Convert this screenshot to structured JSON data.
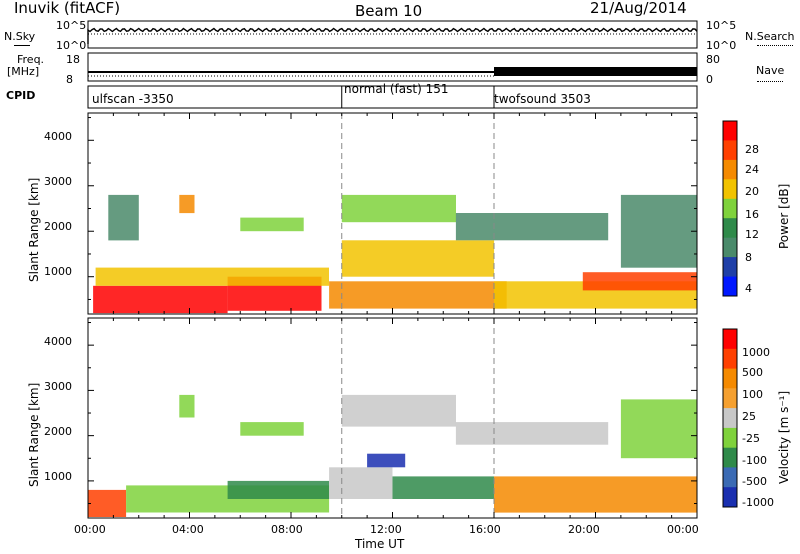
{
  "header": {
    "station": "Inuvik (fitACF)",
    "beam": "Beam 10",
    "date": "21/Aug/2014"
  },
  "top_panels": {
    "nsky_label": "N.Sky",
    "nsky_ticks": [
      "10^5",
      "10^0"
    ],
    "nsearch_label": "N.Search",
    "nsearch_ticks": [
      "10^5",
      "10^0"
    ],
    "freq_label": "Freq.",
    "freq_unit": "[MHz]",
    "freq_ticks": [
      "18",
      "8"
    ],
    "nave_label": "Nave",
    "nave_ticks": [
      "80",
      "0"
    ],
    "cpid_label": "CPID",
    "cpid_segments": [
      "ulfscan -3350",
      "normal (fast) 151",
      "twofsound 3503"
    ]
  },
  "chart_data": [
    {
      "type": "heatmap",
      "title": "",
      "xlabel": "",
      "ylabel": "Slant Range [km]",
      "x_ticks": [
        "00:00",
        "04:00",
        "08:00",
        "12:00",
        "16:00",
        "20:00",
        "00:00"
      ],
      "y_ticks": [
        "1000",
        "2000",
        "3000",
        "4000"
      ],
      "ylim": [
        180,
        4600
      ],
      "colorbar": {
        "label": "Power [dB]",
        "ticks": [
          "4",
          "8",
          "12",
          "16",
          "20",
          "24",
          "28"
        ],
        "colors": [
          "#0018ff",
          "#1f3fa8",
          "#4a8a6a",
          "#2f8a4a",
          "#7fd23c",
          "#f2c300",
          "#f58a00",
          "#ff4000",
          "#ff0000"
        ]
      },
      "regions": [
        {
          "t0": 0.2,
          "t1": 5.5,
          "r0": 200,
          "r1": 800,
          "level": 8
        },
        {
          "t0": 5.5,
          "t1": 9.2,
          "r0": 250,
          "r1": 1000,
          "level": 8
        },
        {
          "t0": 0.3,
          "t1": 9.5,
          "r0": 800,
          "r1": 1200,
          "level": 5
        },
        {
          "t0": 9.5,
          "t1": 16.5,
          "r0": 300,
          "r1": 900,
          "level": 6
        },
        {
          "t0": 10.0,
          "t1": 16.0,
          "r0": 1000,
          "r1": 1800,
          "level": 5
        },
        {
          "t0": 10.0,
          "t1": 14.5,
          "r0": 2200,
          "r1": 2800,
          "level": 4
        },
        {
          "t0": 14.5,
          "t1": 20.5,
          "r0": 1800,
          "r1": 2400,
          "level": 2
        },
        {
          "t0": 16.0,
          "t1": 24.0,
          "r0": 300,
          "r1": 900,
          "level": 5
        },
        {
          "t0": 19.5,
          "t1": 24.0,
          "r0": 700,
          "r1": 1100,
          "level": 7
        },
        {
          "t0": 0.8,
          "t1": 2.0,
          "r0": 1800,
          "r1": 2800,
          "level": 2
        },
        {
          "t0": 3.6,
          "t1": 4.2,
          "r0": 2400,
          "r1": 2800,
          "level": 6
        },
        {
          "t0": 6.0,
          "t1": 8.5,
          "r0": 2000,
          "r1": 2300,
          "level": 4
        },
        {
          "t0": 21.0,
          "t1": 24.0,
          "r0": 1200,
          "r1": 2800,
          "level": 2
        }
      ]
    },
    {
      "type": "heatmap",
      "title": "",
      "xlabel": "Time UT",
      "ylabel": "Slant Range [km]",
      "x_ticks": [
        "00:00",
        "04:00",
        "08:00",
        "12:00",
        "16:00",
        "20:00",
        "00:00"
      ],
      "y_ticks": [
        "1000",
        "2000",
        "3000",
        "4000"
      ],
      "ylim": [
        180,
        4600
      ],
      "colorbar": {
        "label": "Velocity [m s⁻¹]",
        "ticks": [
          "1000",
          "500",
          "100",
          "25",
          "-25",
          "-100",
          "-500",
          "-1000"
        ],
        "colors": [
          "#1a2fb0",
          "#3a6ab4",
          "#2f8a4a",
          "#7fd23c",
          "#c8c8c8",
          "#f5a030",
          "#f58a00",
          "#ff4000",
          "#ff0000"
        ]
      },
      "regions": [
        {
          "t0": 0.0,
          "t1": 1.5,
          "r0": 200,
          "r1": 800,
          "level": 7
        },
        {
          "t0": 1.5,
          "t1": 9.5,
          "r0": 300,
          "r1": 900,
          "level": 3
        },
        {
          "t0": 5.5,
          "t1": 9.5,
          "r0": 600,
          "r1": 1000,
          "level": 2
        },
        {
          "t0": 9.5,
          "t1": 12.0,
          "r0": 600,
          "r1": 1300,
          "level": 4
        },
        {
          "t0": 12.0,
          "t1": 16.0,
          "r0": 600,
          "r1": 1100,
          "level": 2
        },
        {
          "t0": 10.0,
          "t1": 14.5,
          "r0": 2200,
          "r1": 2900,
          "level": 4
        },
        {
          "t0": 14.5,
          "t1": 20.5,
          "r0": 1800,
          "r1": 2300,
          "level": 4
        },
        {
          "t0": 16.0,
          "t1": 24.0,
          "r0": 300,
          "r1": 1100,
          "level": 6
        },
        {
          "t0": 11.0,
          "t1": 12.5,
          "r0": 1300,
          "r1": 1600,
          "level": 0
        },
        {
          "t0": 3.6,
          "t1": 4.2,
          "r0": 2400,
          "r1": 2900,
          "level": 3
        },
        {
          "t0": 6.0,
          "t1": 8.5,
          "r0": 2000,
          "r1": 2300,
          "level": 3
        },
        {
          "t0": 21.0,
          "t1": 24.0,
          "r0": 1500,
          "r1": 2800,
          "level": 3
        }
      ]
    }
  ]
}
